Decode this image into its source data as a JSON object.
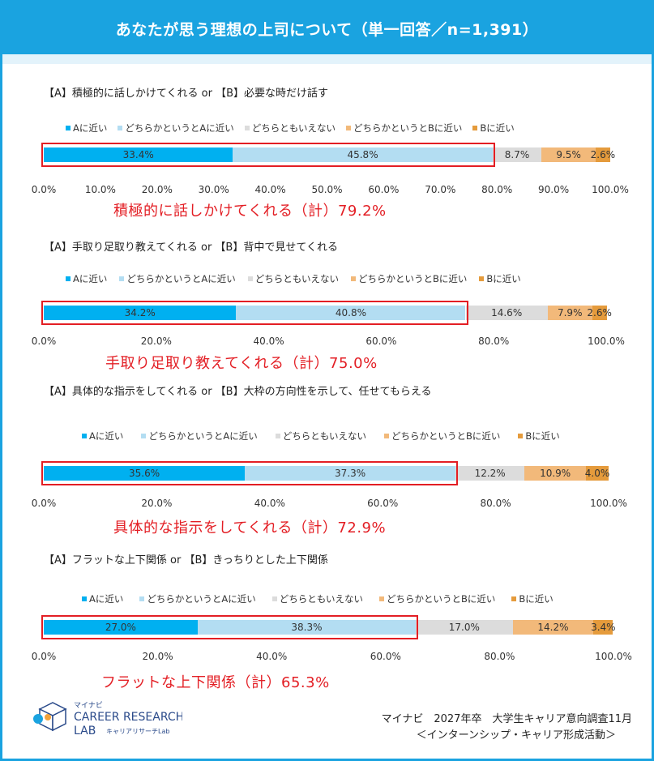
{
  "header": {
    "title": "あなたが思う理想の上司について（単一回答／n=1,391）"
  },
  "legend": [
    "Aに近い",
    "どちらかというとAに近い",
    "どちらともいえない",
    "どちらかというとBに近い",
    "Bに近い"
  ],
  "colors": [
    "#00b0f0",
    "#b3ddf2",
    "#dcdcdc",
    "#f2b97a",
    "#e59b3c"
  ],
  "chart_data": [
    {
      "type": "bar",
      "title": "【A】積極的に話しかけてくれる or 【B】必要な時だけ話す",
      "series": [
        {
          "name": "Aに近い",
          "values": [
            33.4
          ]
        },
        {
          "name": "どちらかというとAに近い",
          "values": [
            45.8
          ]
        },
        {
          "name": "どちらともいえない",
          "values": [
            8.7
          ]
        },
        {
          "name": "どちらかというとBに近い",
          "values": [
            9.5
          ]
        },
        {
          "name": "Bに近い",
          "values": [
            2.6
          ]
        }
      ],
      "value_labels": [
        "33.4%",
        "45.8%",
        "8.7%",
        "9.5%",
        "2.6%"
      ],
      "ticks": [
        "0.0%",
        "10.0%",
        "20.0%",
        "30.0%",
        "40.0%",
        "50.0%",
        "60.0%",
        "70.0%",
        "80.0%",
        "90.0%",
        "100.0%"
      ],
      "xlim": [
        0,
        100
      ],
      "highlight_total": 79.2,
      "summary": "積極的に話しかけてくれる（計）79.2%"
    },
    {
      "type": "bar",
      "title": "【A】手取り足取り教えてくれる or 【B】背中で見せてくれる",
      "series": [
        {
          "name": "Aに近い",
          "values": [
            34.2
          ]
        },
        {
          "name": "どちらかというとAに近い",
          "values": [
            40.8
          ]
        },
        {
          "name": "どちらともいえない",
          "values": [
            14.6
          ]
        },
        {
          "name": "どちらかというとBに近い",
          "values": [
            7.9
          ]
        },
        {
          "name": "Bに近い",
          "values": [
            2.6
          ]
        }
      ],
      "value_labels": [
        "34.2%",
        "40.8%",
        "14.6%",
        "7.9%",
        "2.6%"
      ],
      "ticks": [
        "0.0%",
        "20.0%",
        "40.0%",
        "60.0%",
        "80.0%",
        "100.0%"
      ],
      "xlim": [
        0,
        100
      ],
      "highlight_total": 75.0,
      "summary": "手取り足取り教えてくれる（計）75.0%"
    },
    {
      "type": "bar",
      "title": "【A】具体的な指示をしてくれる or 【B】大枠の方向性を示して、任せてもらえる",
      "series": [
        {
          "name": "Aに近い",
          "values": [
            35.6
          ]
        },
        {
          "name": "どちらかというとAに近い",
          "values": [
            37.3
          ]
        },
        {
          "name": "どちらともいえない",
          "values": [
            12.2
          ]
        },
        {
          "name": "どちらかというとBに近い",
          "values": [
            10.9
          ]
        },
        {
          "name": "Bに近い",
          "values": [
            4.0
          ]
        }
      ],
      "value_labels": [
        "35.6%",
        "37.3%",
        "12.2%",
        "10.9%",
        "4.0%"
      ],
      "ticks": [
        "0.0%",
        "20.0%",
        "40.0%",
        "60.0%",
        "80.0%",
        "100.0%"
      ],
      "xlim": [
        0,
        100
      ],
      "highlight_total": 72.9,
      "summary": "具体的な指示をしてくれる（計）72.9%"
    },
    {
      "type": "bar",
      "title": "【A】フラットな上下関係 or 【B】きっちりとした上下関係",
      "series": [
        {
          "name": "Aに近い",
          "values": [
            27.0
          ]
        },
        {
          "name": "どちらかというとAに近い",
          "values": [
            38.3
          ]
        },
        {
          "name": "どちらともいえない",
          "values": [
            17.0
          ]
        },
        {
          "name": "どちらかというとBに近い",
          "values": [
            14.2
          ]
        },
        {
          "name": "Bに近い",
          "values": [
            3.4
          ]
        }
      ],
      "value_labels": [
        "27.0%",
        "38.3%",
        "17.0%",
        "14.2%",
        "3.4%"
      ],
      "ticks": [
        "0.0%",
        "20.0%",
        "40.0%",
        "60.0%",
        "80.0%",
        "100.0%"
      ],
      "xlim": [
        0,
        100
      ],
      "highlight_total": 65.3,
      "summary": "フラットな上下関係（計）65.3%"
    }
  ],
  "logo": {
    "top": "マイナビ",
    "line1": "CAREER RESEARCH",
    "line2": "LAB",
    "sub": "キャリアリサーチLab"
  },
  "footer": {
    "source": "マイナビ　2027年卒　大学生キャリア意向調査11月",
    "sub": "＜インターンシップ・キャリア形成活動＞"
  }
}
